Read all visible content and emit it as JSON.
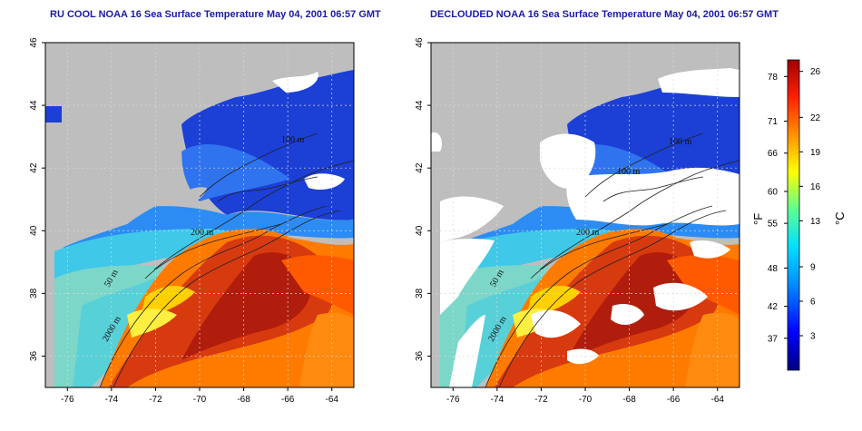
{
  "panels": [
    {
      "id": "left",
      "title": "RU COOL NOAA 16 Sea Surface Temperature May 04, 2001 06:57 GMT",
      "contour_labels": [
        "50 m",
        "200 m",
        "2000 m",
        "100 m"
      ]
    },
    {
      "id": "right",
      "title": "DECLOUDED NOAA 16 Sea Surface Temperature May 04, 2001 06:57 GMT",
      "contour_labels": [
        "50 m",
        "200 m",
        "2000 m",
        "100 m",
        "100 m"
      ]
    }
  ],
  "map": {
    "lon_ticks": [
      "-76",
      "-74",
      "-72",
      "-70",
      "-68",
      "-66",
      "-64"
    ],
    "lat_ticks": [
      "46",
      "44",
      "42",
      "40",
      "38",
      "36"
    ],
    "lon_range": [
      -77,
      -63
    ],
    "lat_range": [
      35,
      46
    ]
  },
  "colorbar": {
    "f_unit": "°F",
    "c_unit": "°C",
    "f_ticks": [
      "78",
      "71",
      "66",
      "60",
      "55",
      "48",
      "42",
      "37"
    ],
    "c_ticks": [
      "26",
      "22",
      "19",
      "16",
      "13",
      "9",
      "6",
      "3"
    ]
  },
  "colors": {
    "land": "#bebebe",
    "cloud": "#ffffff",
    "grid": "#d8d8d8",
    "title": "#1a1aa6"
  }
}
